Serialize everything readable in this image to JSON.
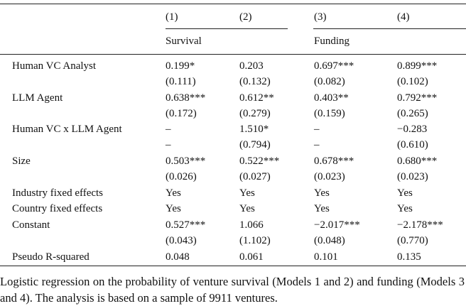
{
  "header": {
    "columns": [
      "(1)",
      "(2)",
      "(3)",
      "(4)"
    ],
    "groups": [
      "Survival",
      "Funding"
    ]
  },
  "table": {
    "rows": [
      {
        "label": "Human VC Analyst",
        "values": [
          "0.199*",
          "0.203",
          "0.697***",
          "0.899***"
        ],
        "se": [
          "(0.111)",
          "(0.132)",
          "(0.082)",
          "(0.102)"
        ]
      },
      {
        "label": "LLM Agent",
        "values": [
          "0.638***",
          "0.612**",
          "0.403**",
          "0.792***"
        ],
        "se": [
          "(0.172)",
          "(0.279)",
          "(0.159)",
          "(0.265)"
        ]
      },
      {
        "label": "Human VC x LLM Agent",
        "values": [
          "–",
          "1.510*",
          "–",
          "−0.283"
        ],
        "se": [
          "–",
          "(0.794)",
          "–",
          "(0.610)"
        ]
      },
      {
        "label": "Size",
        "values": [
          "0.503***",
          "0.522***",
          "0.678***",
          "0.680***"
        ],
        "se": [
          "(0.026)",
          "(0.027)",
          "(0.023)",
          "(0.023)"
        ]
      },
      {
        "label": "Industry fixed effects",
        "values": [
          "Yes",
          "Yes",
          "Yes",
          "Yes"
        ]
      },
      {
        "label": "Country fixed effects",
        "values": [
          "Yes",
          "Yes",
          "Yes",
          "Yes"
        ]
      },
      {
        "label": "Constant",
        "values": [
          "0.527***",
          "1.066",
          "−2.017***",
          "−2.178***"
        ],
        "se": [
          "(0.043)",
          "(1.102)",
          "(0.048)",
          "(0.770)"
        ]
      },
      {
        "label": "Pseudo R-squared",
        "values": [
          "0.048",
          "0.061",
          "0.101",
          "0.135"
        ]
      }
    ]
  },
  "caption": "Logistic regression on the probability of venture survival (Models 1 and 2) and funding (Models 3 and 4). The analysis is based on a sample of 9911 ventures."
}
